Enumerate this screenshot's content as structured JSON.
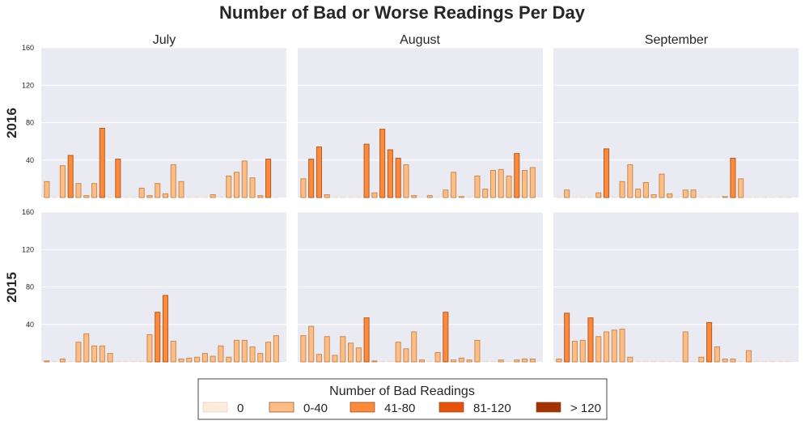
{
  "chart_data": {
    "type": "bar",
    "title": "Number of Bad or Worse Readings Per Day",
    "columns": [
      "July",
      "August",
      "September"
    ],
    "rows": [
      "2016",
      "2015"
    ],
    "ylim": [
      0,
      160
    ],
    "yticks": [
      40,
      80,
      120,
      160
    ],
    "grid": true,
    "legend": {
      "title": "Number of Bad Readings",
      "placement": "bottom-center",
      "entries": [
        {
          "label": "0",
          "color": "#fdebdc"
        },
        {
          "label": "0-40",
          "color": "#fdbd84"
        },
        {
          "label": "41-80",
          "color": "#fc8a3c"
        },
        {
          "label": "81-120",
          "color": "#e5530f"
        },
        {
          "label": "> 120",
          "color": "#a33203"
        }
      ]
    },
    "panels": [
      {
        "row": "2016",
        "column": "July",
        "values": [
          17,
          0,
          34,
          45,
          15,
          2,
          15,
          74,
          0,
          41,
          0,
          0,
          10,
          2,
          15,
          4,
          35,
          17,
          0,
          0,
          0,
          3,
          0,
          23,
          27,
          39,
          21,
          2,
          41,
          0,
          0
        ]
      },
      {
        "row": "2016",
        "column": "August",
        "values": [
          20,
          41,
          54,
          3,
          0,
          0,
          0,
          0,
          57,
          5,
          73,
          51,
          42,
          35,
          2,
          0,
          2,
          0,
          8,
          27,
          1,
          0,
          23,
          9,
          29,
          30,
          23,
          47,
          29,
          32,
          0
        ]
      },
      {
        "row": "2016",
        "column": "September",
        "values": [
          0,
          8,
          0,
          0,
          0,
          5,
          52,
          0,
          17,
          35,
          9,
          16,
          3,
          25,
          4,
          0,
          8,
          8,
          0,
          0,
          0,
          1,
          42,
          20,
          0,
          0,
          0,
          0,
          0,
          0
        ]
      },
      {
        "row": "2015",
        "column": "July",
        "values": [
          1,
          0,
          3,
          0,
          21,
          30,
          17,
          17,
          9,
          0,
          0,
          0,
          0,
          29,
          53,
          71,
          22,
          3,
          4,
          5,
          9,
          6,
          17,
          5,
          23,
          23,
          16,
          9,
          21,
          28,
          3
        ]
      },
      {
        "row": "2015",
        "column": "August",
        "values": [
          28,
          38,
          8,
          27,
          7,
          27,
          20,
          15,
          47,
          1,
          0,
          0,
          21,
          14,
          32,
          2,
          0,
          10,
          53,
          2,
          4,
          2,
          23,
          0,
          0,
          2,
          0,
          2,
          3,
          3,
          0
        ]
      },
      {
        "row": "2015",
        "column": "September",
        "values": [
          3,
          52,
          22,
          23,
          47,
          27,
          32,
          34,
          35,
          5,
          0,
          0,
          0,
          0,
          0,
          0,
          32,
          0,
          5,
          42,
          16,
          3,
          3,
          0,
          12,
          0,
          0,
          0,
          0,
          0
        ]
      }
    ]
  }
}
